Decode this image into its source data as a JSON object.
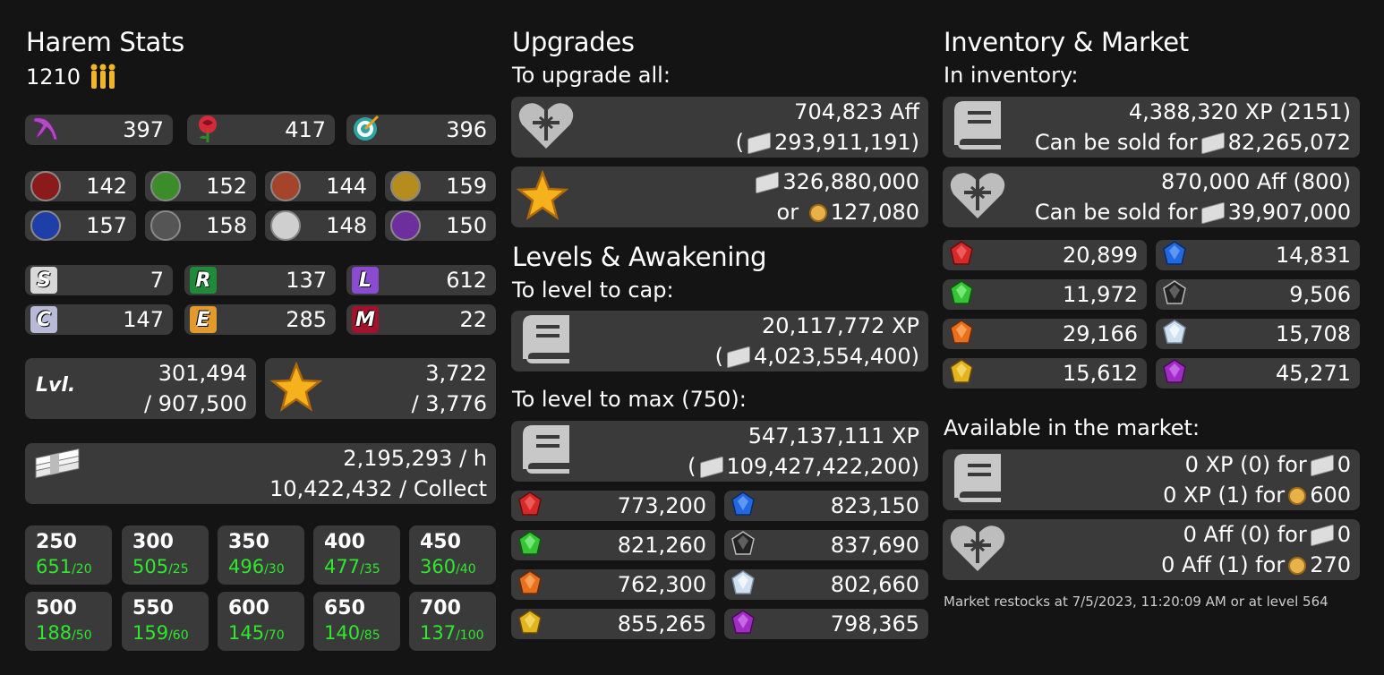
{
  "harem": {
    "title": "Harem Stats",
    "count": "1210",
    "classes": [
      {
        "icon": "hardcore-icon",
        "value": "397",
        "color": "#b04cc0"
      },
      {
        "icon": "charm-icon",
        "value": "417",
        "color": "#d32b3a"
      },
      {
        "icon": "knowhow-icon",
        "value": "396",
        "color": "#2aa6a6"
      }
    ],
    "elements": [
      {
        "icon": "darkness-icon",
        "value": "142",
        "color": "#8b1a1a"
      },
      {
        "icon": "nature-icon",
        "value": "152",
        "color": "#3c8c2a"
      },
      {
        "icon": "fire-icon",
        "value": "144",
        "color": "#a5442a"
      },
      {
        "icon": "stone-icon",
        "value": "159",
        "color": "#b58d1e"
      },
      {
        "icon": "water-icon",
        "value": "157",
        "color": "#1f3fa8"
      },
      {
        "icon": "sun-icon",
        "value": "158",
        "color": "#555555"
      },
      {
        "icon": "light-icon",
        "value": "148",
        "color": "#cfcfcf"
      },
      {
        "icon": "psychic-icon",
        "value": "150",
        "color": "#6e2f9e"
      }
    ],
    "rarities": [
      {
        "letter": "S",
        "value": "7",
        "color": "#d8d8d8"
      },
      {
        "letter": "R",
        "value": "137",
        "color": "#1f8a3a"
      },
      {
        "letter": "L",
        "value": "612",
        "color": "#8a4bd0"
      },
      {
        "letter": "C",
        "value": "147",
        "color": "#b9b9d8"
      },
      {
        "letter": "E",
        "value": "285",
        "color": "#e39a2c"
      },
      {
        "letter": "M",
        "value": "22",
        "color": "#a3112a"
      }
    ],
    "level": {
      "label": "Lvl.",
      "current": "301,494",
      "total": "/ 907,500"
    },
    "stars": {
      "current": "3,722",
      "total": "/ 3,776"
    },
    "income": {
      "per_hour": "2,195,293 / h",
      "per_collect": "10,422,432 / Collect"
    },
    "levels": [
      {
        "lv": "250",
        "count": "651",
        "max": "/20"
      },
      {
        "lv": "300",
        "count": "505",
        "max": "/25"
      },
      {
        "lv": "350",
        "count": "496",
        "max": "/30"
      },
      {
        "lv": "400",
        "count": "477",
        "max": "/35"
      },
      {
        "lv": "450",
        "count": "360",
        "max": "/40"
      },
      {
        "lv": "500",
        "count": "188",
        "max": "/50"
      },
      {
        "lv": "550",
        "count": "159",
        "max": "/60"
      },
      {
        "lv": "600",
        "count": "145",
        "max": "/70"
      },
      {
        "lv": "650",
        "count": "140",
        "max": "/85"
      },
      {
        "lv": "700",
        "count": "137",
        "max": "/100"
      }
    ]
  },
  "upgrades": {
    "title": "Upgrades",
    "subtitle": "To upgrade all:",
    "aff": {
      "line1": "704,823 Aff",
      "open": "(",
      "cost": "293,911,191)"
    },
    "stars": {
      "cost1": "326,880,000",
      "or": "or",
      "cost2": "127,080"
    }
  },
  "levels_awakening": {
    "title": "Levels & Awakening",
    "cap_label": "To level to cap:",
    "cap": {
      "xp": "20,117,772 XP",
      "open": "(",
      "cost": "4,023,554,400)"
    },
    "max_label": "To level to max (750):",
    "max": {
      "xp": "547,137,111 XP",
      "open": "(",
      "cost": "109,427,422,200)"
    },
    "gems": [
      {
        "icon": "darkness-gem-icon",
        "value": "773,200",
        "color": "#d42a2a"
      },
      {
        "icon": "water-gem-icon",
        "value": "823,150",
        "color": "#2268e0"
      },
      {
        "icon": "nature-gem-icon",
        "value": "821,260",
        "color": "#36c436"
      },
      {
        "icon": "sun-gem-icon",
        "value": "837,690",
        "color": "#222222"
      },
      {
        "icon": "fire-gem-icon",
        "value": "762,300",
        "color": "#e8701c"
      },
      {
        "icon": "light-gem-icon",
        "value": "802,660",
        "color": "#cfe0f0"
      },
      {
        "icon": "stone-gem-icon",
        "value": "855,265",
        "color": "#e2b41e"
      },
      {
        "icon": "psychic-gem-icon",
        "value": "798,365",
        "color": "#a02cc4"
      }
    ]
  },
  "inventory": {
    "title": "Inventory & Market",
    "subtitle": "In inventory:",
    "xp": {
      "line1": "4,388,320 XP (2151)",
      "sold_label": "Can be sold for",
      "sold_value": "82,265,072"
    },
    "aff": {
      "line1": "870,000 Aff (800)",
      "sold_label": "Can be sold for",
      "sold_value": "39,907,000"
    },
    "gems": [
      {
        "icon": "darkness-gem-icon",
        "value": "20,899",
        "color": "#d42a2a"
      },
      {
        "icon": "water-gem-icon",
        "value": "14,831",
        "color": "#2268e0"
      },
      {
        "icon": "nature-gem-icon",
        "value": "11,972",
        "color": "#36c436"
      },
      {
        "icon": "sun-gem-icon",
        "value": "9,506",
        "color": "#222222"
      },
      {
        "icon": "fire-gem-icon",
        "value": "29,166",
        "color": "#e8701c"
      },
      {
        "icon": "light-gem-icon",
        "value": "15,708",
        "color": "#cfe0f0"
      },
      {
        "icon": "stone-gem-icon",
        "value": "15,612",
        "color": "#e2b41e"
      },
      {
        "icon": "psychic-gem-icon",
        "value": "45,271",
        "color": "#a02cc4"
      }
    ],
    "market_label": "Available in the market:",
    "market_xp": {
      "line1_a": "0 XP (0) for",
      "line1_b": "0",
      "line2_a": "0 XP (1) for",
      "line2_b": "600"
    },
    "market_aff": {
      "line1_a": "0 Aff (0) for",
      "line1_b": "0",
      "line2_a": "0 Aff (1) for",
      "line2_b": "270"
    },
    "restock": "Market restocks at 7/5/2023, 11:20:09 AM or at level 564"
  }
}
